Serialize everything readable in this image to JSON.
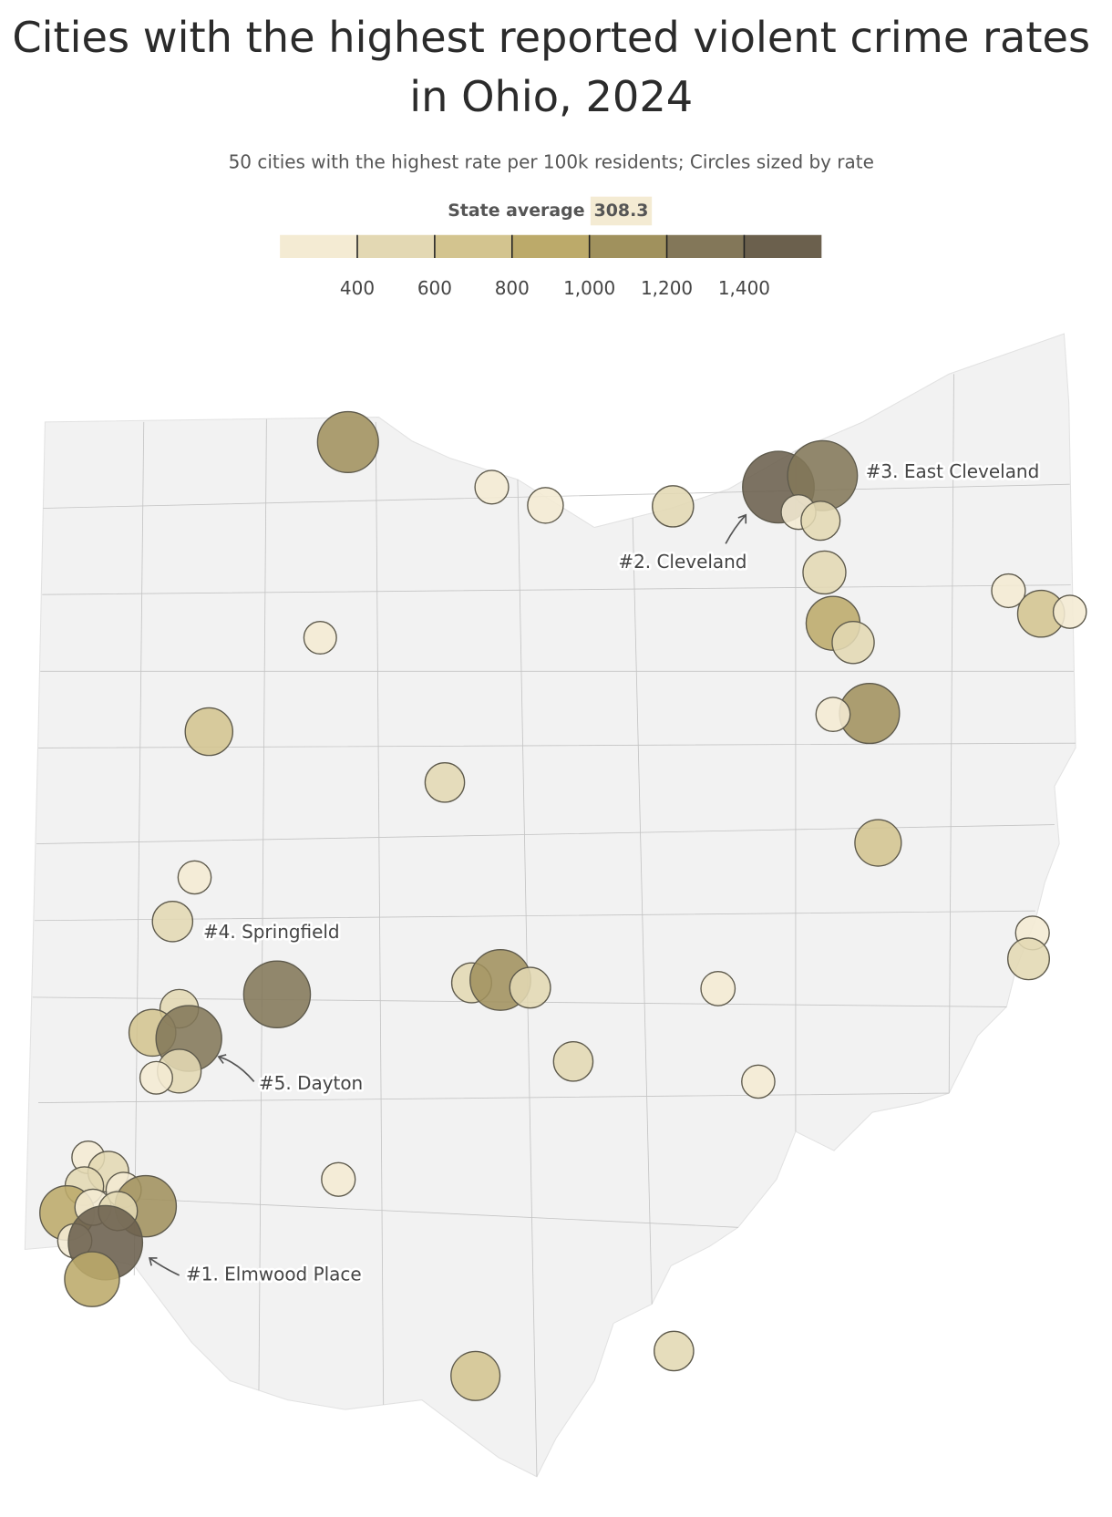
{
  "chart_data": {
    "type": "bubble_map",
    "title": [
      "Cities with the highest reported violent crime rates",
      "in Ohio, 2024"
    ],
    "subtitle": "50 cities with the highest rate per 100k residents; Circles sized by rate",
    "state_average_label": "State average",
    "state_average": 308.3,
    "xlim": [
      200,
      1600
    ],
    "xticks": [
      400,
      600,
      800,
      {
        "value": 1000,
        "label": "1,000"
      },
      {
        "value": 1200,
        "label": "1,200"
      },
      {
        "value": 1400,
        "label": "1,400"
      }
    ],
    "colors": [
      "#f4ebd3",
      "#e3d8b3",
      "#d3c48f",
      "#bcaa6a",
      "#a0915d",
      "#837759",
      "#6b604d"
    ],
    "values": [
      1050,
      320,
      360,
      480,
      1450,
      1380,
      340,
      430,
      520,
      820,
      500,
      1020,
      330,
      320,
      620,
      310,
      300,
      640,
      440,
      610,
      310,
      460,
      1260,
      450,
      1040,
      470,
      330,
      320,
      490,
      420,
      620,
      1220,
      540,
      300,
      440,
      310,
      320,
      300,
      470,
      420,
      350,
      1060,
      840,
      370,
      430,
      330,
      1560,
      850,
      680,
      440
    ],
    "annotations": [
      "#3. East Cleveland",
      "#2. Cleveland",
      "#4. Springfield",
      "#5. Dayton",
      "#1. Elmwood Place"
    ]
  }
}
